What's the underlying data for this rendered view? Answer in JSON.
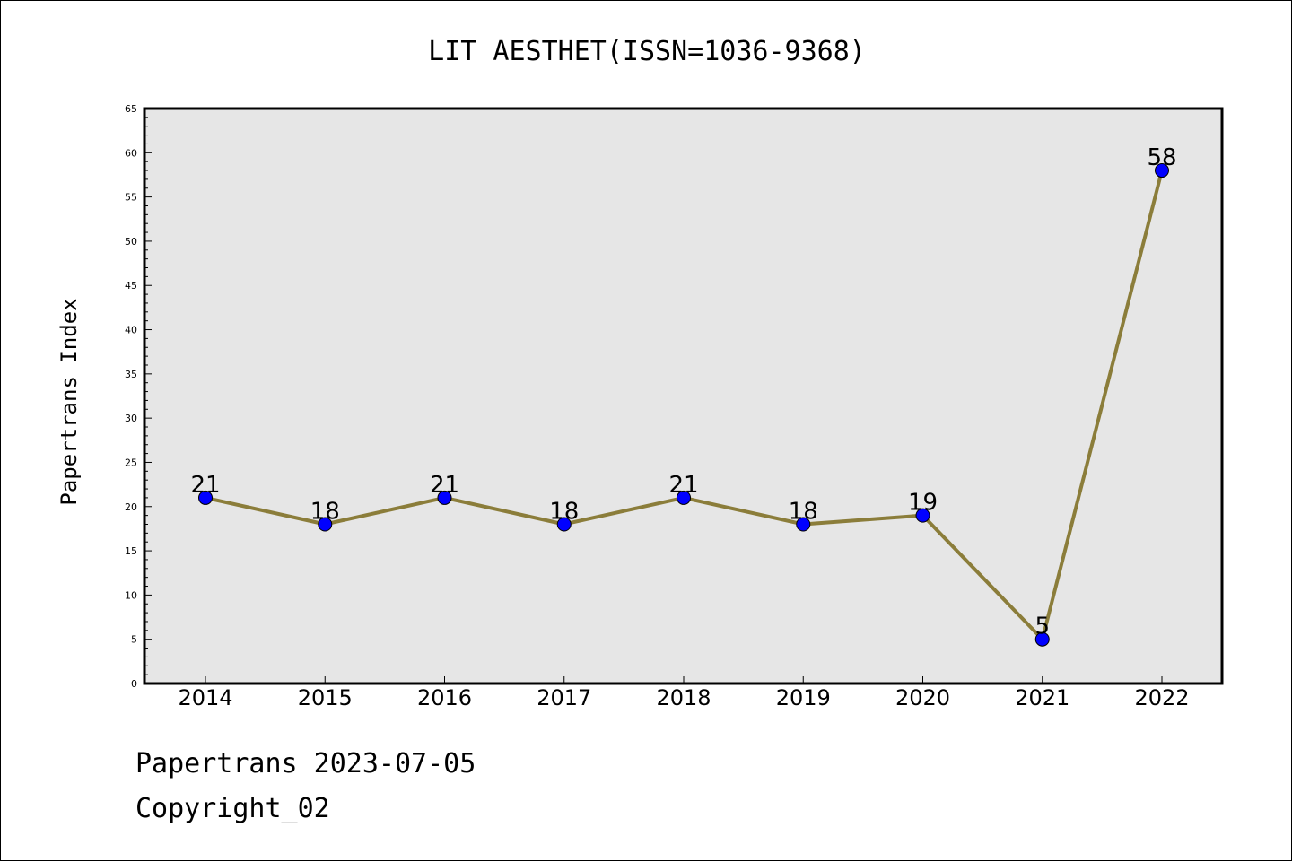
{
  "chart_data": {
    "type": "line",
    "title": "LIT AESTHET(ISSN=1036-9368)",
    "xlabel": "",
    "ylabel": "Papertrans Index",
    "categories": [
      "2014",
      "2015",
      "2016",
      "2017",
      "2018",
      "2019",
      "2020",
      "2021",
      "2022"
    ],
    "series": [
      {
        "values": [
          21,
          18,
          21,
          18,
          21,
          18,
          19,
          5,
          58
        ]
      }
    ],
    "data_labels": [
      "21",
      "18",
      "21",
      "18",
      "21",
      "18",
      "19",
      "5",
      "58"
    ],
    "ylim": [
      0,
      65
    ],
    "yticks": [
      "0",
      "5",
      "10",
      "15",
      "20",
      "25",
      "30",
      "35",
      "40",
      "45",
      "50",
      "55",
      "60",
      "65"
    ],
    "grid": false,
    "legend": "none",
    "colors": {
      "line": "#8B7D3A",
      "marker": "#0000FF",
      "plot_background": "#E6E6E6"
    }
  },
  "footer": {
    "line1": "Papertrans 2023-07-05",
    "line2": "Copyright_02"
  }
}
